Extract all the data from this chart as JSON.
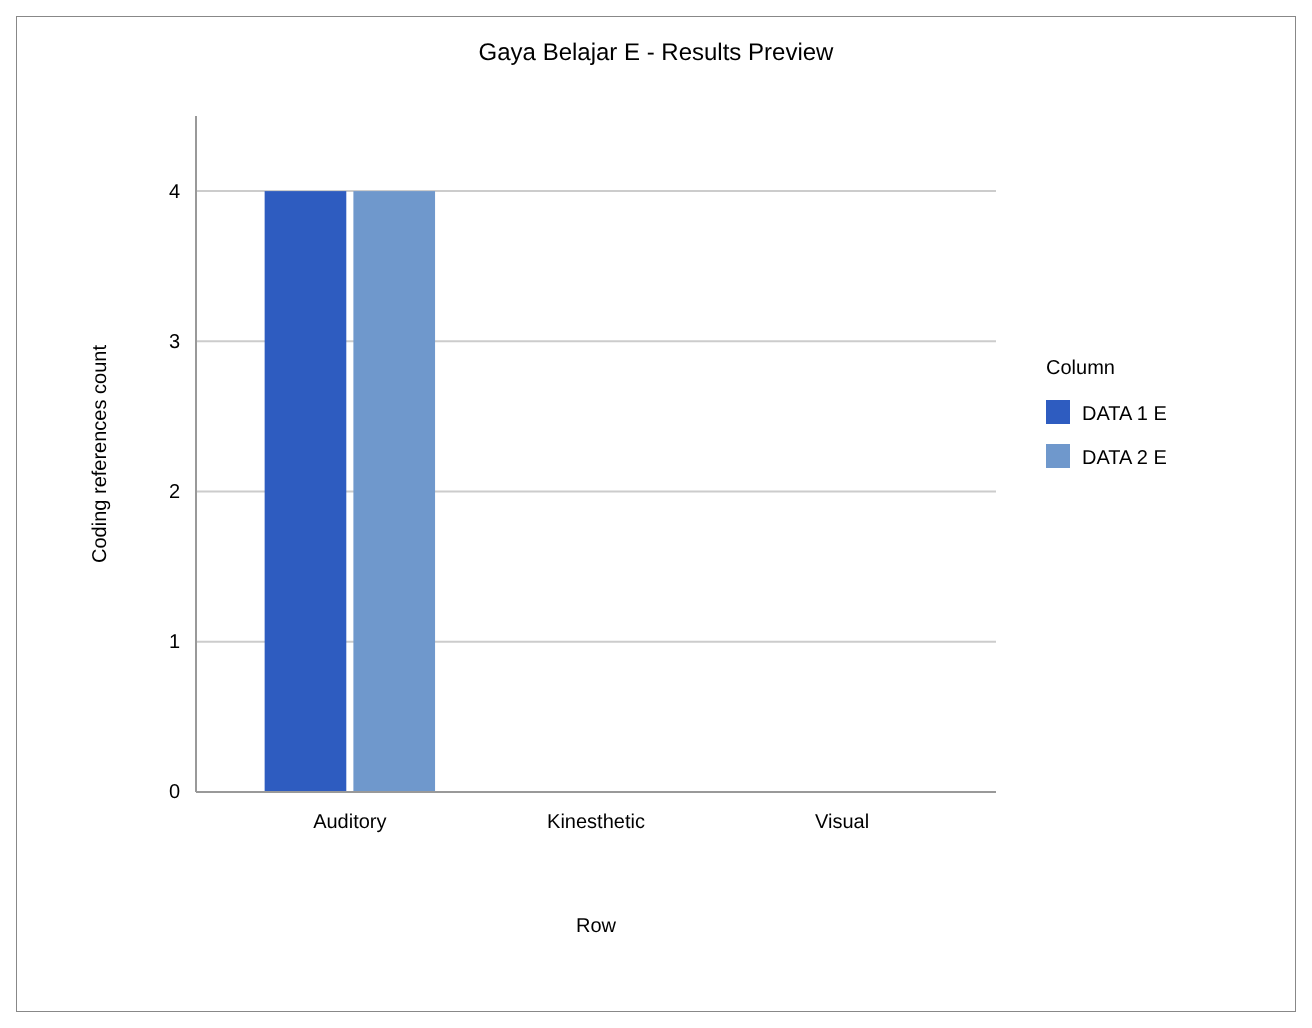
{
  "chart_data": {
    "type": "bar",
    "title": "Gaya Belajar E - Results Preview",
    "xlabel": "Row",
    "ylabel": "Coding references count",
    "legend_title": "Column",
    "categories": [
      "Auditory",
      "Kinesthetic",
      "Visual"
    ],
    "series": [
      {
        "name": "DATA 1 E",
        "color": "#2e5cc0",
        "values": [
          4,
          0,
          0
        ]
      },
      {
        "name": "DATA 2 E",
        "color": "#6f98cc",
        "values": [
          4,
          0,
          0
        ]
      }
    ],
    "ylim": [
      0,
      4.5
    ],
    "yticks": [
      0,
      1,
      2,
      3,
      4
    ],
    "grid": "y",
    "legend": "right"
  }
}
